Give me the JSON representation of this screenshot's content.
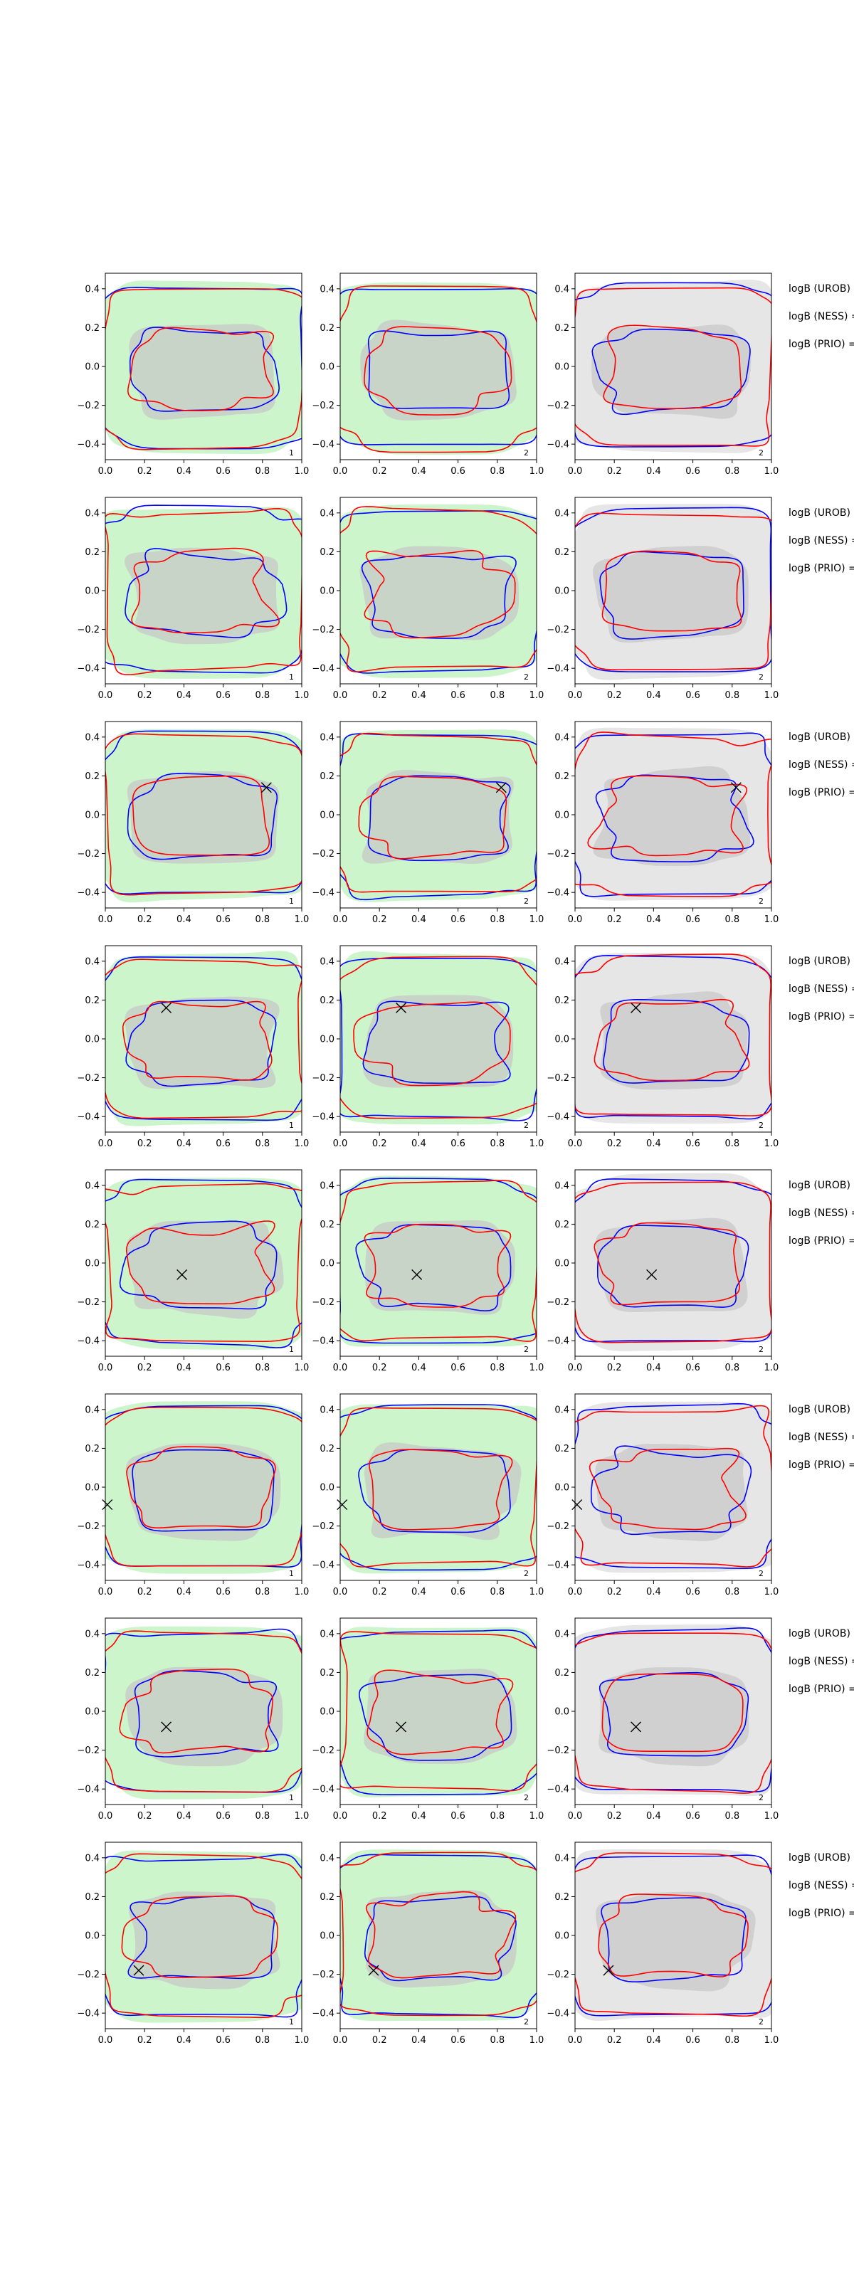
{
  "chart_data": {
    "type": "contour",
    "layout": "8 rows x 3 columns of contour panels with a text annotation column at right",
    "x_ticks": [
      "0.0",
      "0.2",
      "0.4",
      "0.6",
      "0.8",
      "1.0"
    ],
    "x_tick_values": [
      0.0,
      0.2,
      0.4,
      0.6,
      0.8,
      1.0
    ],
    "y_ticks": [
      "0.4",
      "0.2",
      "0.0",
      "−0.2",
      "−0.4"
    ],
    "y_tick_values": [
      0.4,
      0.2,
      0.0,
      -0.2,
      -0.4
    ],
    "xlim": [
      0.0,
      1.0
    ],
    "ylim": [
      -0.48,
      0.48
    ],
    "panel_labels": [
      "1",
      "2",
      "2"
    ],
    "panel_backgrounds": [
      "#ccf5cc",
      "#ccf5cc",
      "#e6e6e6"
    ],
    "colors": {
      "blue": "#0000ff",
      "red": "#ff0000",
      "inner_fill": "#c8c8c8",
      "green_fill": "#ccf5cc",
      "grey_fill": "#e6e6e6"
    },
    "annotations": [
      "logB (UROB) =",
      "logB (NESS) =",
      "logB (PRIO) ="
    ],
    "rows": [
      {
        "row": 1,
        "marker": null
      },
      {
        "row": 2,
        "marker": null
      },
      {
        "row": 3,
        "marker": {
          "x": 0.82,
          "y": 0.14
        }
      },
      {
        "row": 4,
        "marker": {
          "x": 0.31,
          "y": 0.16
        }
      },
      {
        "row": 5,
        "marker": {
          "x": 0.39,
          "y": -0.06
        }
      },
      {
        "row": 6,
        "marker": {
          "x": 0.01,
          "y": -0.09
        }
      },
      {
        "row": 7,
        "marker": {
          "x": 0.31,
          "y": -0.08
        }
      },
      {
        "row": 8,
        "marker": {
          "x": 0.17,
          "y": -0.18
        }
      }
    ]
  }
}
